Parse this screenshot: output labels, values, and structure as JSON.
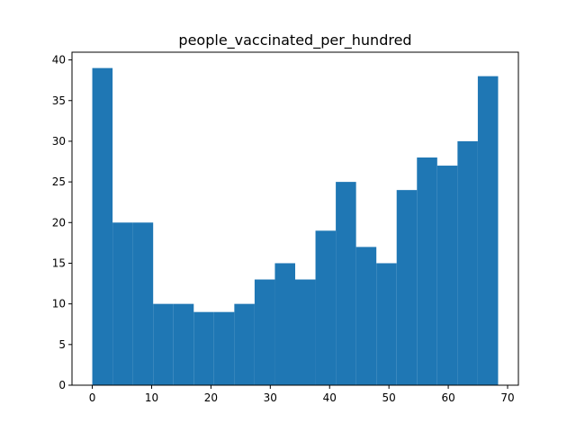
{
  "chart_data": {
    "type": "bar",
    "title": "people_vaccinated_per_hundred",
    "xlabel": "",
    "ylabel": "",
    "bin_edges": [
      0,
      3.42,
      6.84,
      10.26,
      13.68,
      17.1,
      20.52,
      23.94,
      27.36,
      30.78,
      34.2,
      37.62,
      41.04,
      44.46,
      47.88,
      51.3,
      54.72,
      58.14,
      61.56,
      64.98,
      68.4
    ],
    "values": [
      39,
      20,
      20,
      10,
      10,
      9,
      9,
      10,
      13,
      15,
      13,
      19,
      25,
      17,
      15,
      24,
      28,
      27,
      30,
      38
    ],
    "xlim": [
      -3.42,
      71.82
    ],
    "ylim": [
      0,
      40.95
    ],
    "xticks": [
      0,
      10,
      20,
      30,
      40,
      50,
      60,
      70
    ],
    "yticks": [
      0,
      5,
      10,
      15,
      20,
      25,
      30,
      35,
      40
    ],
    "bar_color": "#1f77b4",
    "grid": false,
    "legend": "none"
  }
}
